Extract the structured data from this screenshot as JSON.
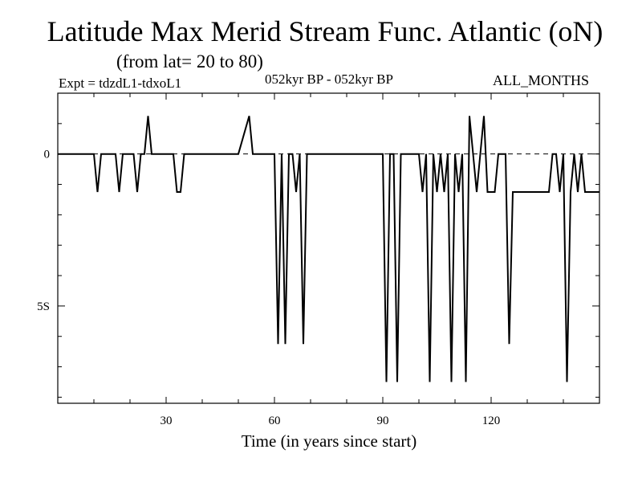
{
  "chart_data": {
    "type": "line",
    "title": "Latitude Max Merid Stream Func. Atlantic (oN)",
    "subtitle": "(from lat= 20 to 80)",
    "expt_label": "Expt = tdzdL1-tdxoL1",
    "period_label": "052kyr BP - 052kyr BP",
    "months_label": "ALL_MONTHS",
    "xlabel": "Time (in years since start)",
    "ylabel": "",
    "xlim": [
      0,
      150
    ],
    "ylim": [
      -8.2,
      2.0
    ],
    "x_ticks": [
      {
        "value": 30,
        "label": "30"
      },
      {
        "value": 60,
        "label": "60"
      },
      {
        "value": 90,
        "label": "90"
      },
      {
        "value": 120,
        "label": "120"
      }
    ],
    "y_ticks": [
      {
        "value": 0,
        "label": "0"
      },
      {
        "value": -5,
        "label": "5S"
      }
    ],
    "zero_line": "dashed",
    "series": [
      {
        "name": "latitude_max",
        "x": [
          0,
          10,
          11,
          12,
          16,
          17,
          18,
          21,
          22,
          23,
          24,
          25,
          26,
          27,
          30,
          32,
          33,
          34,
          35,
          36,
          37,
          50,
          53,
          54,
          55,
          60,
          61,
          62,
          63,
          64,
          65,
          66,
          67,
          68,
          69,
          90,
          91,
          92,
          93,
          94,
          95,
          96,
          100,
          101,
          102,
          103,
          104,
          105,
          106,
          107,
          108,
          109,
          110,
          111,
          112,
          113,
          114,
          115,
          116,
          117,
          118,
          119,
          120,
          121,
          122,
          124,
          125,
          126,
          127,
          128,
          135,
          136,
          137,
          138,
          139,
          140,
          141,
          142,
          143,
          144,
          145,
          146,
          147,
          148,
          149,
          150
        ],
        "y": [
          0,
          0,
          -1.25,
          0,
          0,
          -1.25,
          0,
          0,
          -1.25,
          0,
          0,
          1.25,
          0,
          0,
          0,
          0,
          -1.25,
          -1.25,
          0,
          0,
          0,
          0,
          1.25,
          0,
          0,
          0,
          -6.25,
          0,
          -6.25,
          0,
          0,
          -1.25,
          0,
          -6.25,
          0,
          0,
          -7.5,
          0,
          0,
          -7.5,
          0,
          0,
          0,
          -1.25,
          0,
          -7.5,
          0,
          -1.25,
          0,
          -1.25,
          0,
          -7.5,
          0,
          -1.25,
          0,
          -7.5,
          1.25,
          0,
          -1.25,
          0,
          1.25,
          -1.25,
          -1.25,
          -1.25,
          0,
          0,
          -6.25,
          -1.25,
          -1.25,
          -1.25,
          -1.25,
          -1.25,
          0,
          0,
          -1.25,
          0,
          -7.5,
          -1.25,
          0,
          -1.25,
          0,
          -1.25,
          -1.25,
          -1.25,
          -1.25,
          -1.25
        ]
      }
    ]
  }
}
